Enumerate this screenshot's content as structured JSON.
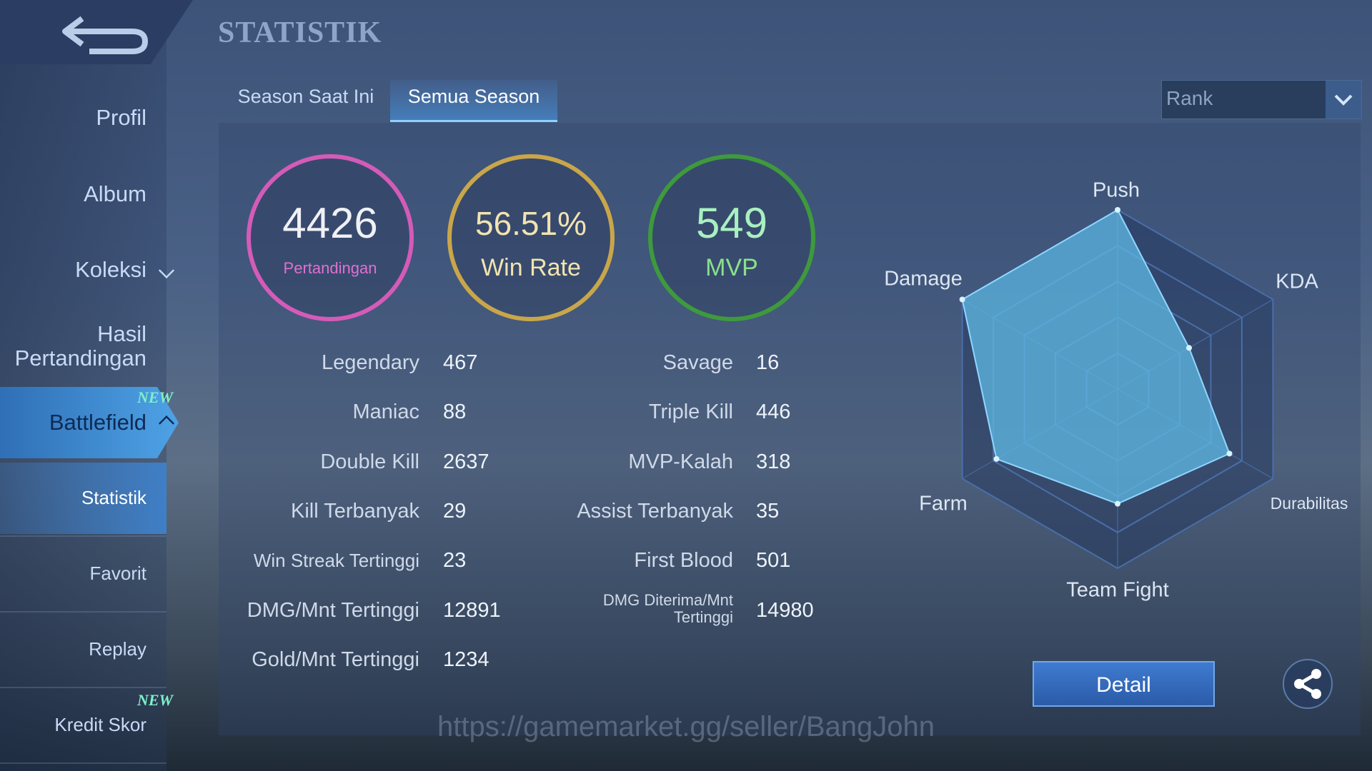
{
  "header": {
    "title": "STATISTIK"
  },
  "sidebar": {
    "items": [
      "Profil",
      "Album",
      "Koleksi",
      "Hasil Pertandingan",
      "Battlefield",
      "Statistik",
      "Favorit",
      "Replay",
      "Kredit Skor"
    ],
    "badges": [
      "NEW",
      "NEW"
    ]
  },
  "tabs": [
    "Season Saat Ini",
    "Semua Season"
  ],
  "dropdown": "Rank",
  "summary": [
    {
      "value": 4426,
      "label": "Pertandingan"
    },
    {
      "value": "56.51%",
      "label": "Win Rate"
    },
    {
      "value": 549,
      "label": "MVP"
    }
  ],
  "stats": {
    "left": [
      [
        "Legendary",
        467
      ],
      [
        "Maniac",
        88
      ],
      [
        "Double Kill",
        2637
      ],
      [
        "Kill Terbanyak",
        29
      ],
      [
        "Win Streak Tertinggi",
        23
      ],
      [
        "DMG/Mnt Tertinggi",
        12891
      ],
      [
        "Gold/Mnt Tertinggi",
        1234
      ]
    ],
    "right": [
      [
        "Savage",
        16
      ],
      [
        "Triple Kill",
        446
      ],
      [
        "MVP-Kalah",
        318
      ],
      [
        "Assist Terbanyak",
        35
      ],
      [
        "First Blood",
        501
      ],
      [
        "DMG Diterima/Mnt Tertinggi",
        14980
      ]
    ]
  },
  "radar": {
    "axes": [
      "Push",
      "KDA",
      "Durabilitas",
      "Team Fight",
      "Farm",
      "Damage"
    ],
    "values": [
      100,
      46,
      72,
      64,
      78,
      100
    ],
    "rlim": [
      0,
      100
    ]
  },
  "button": "Detail",
  "watermark": "https://gamemarket.gg/seller/BangJohn"
}
